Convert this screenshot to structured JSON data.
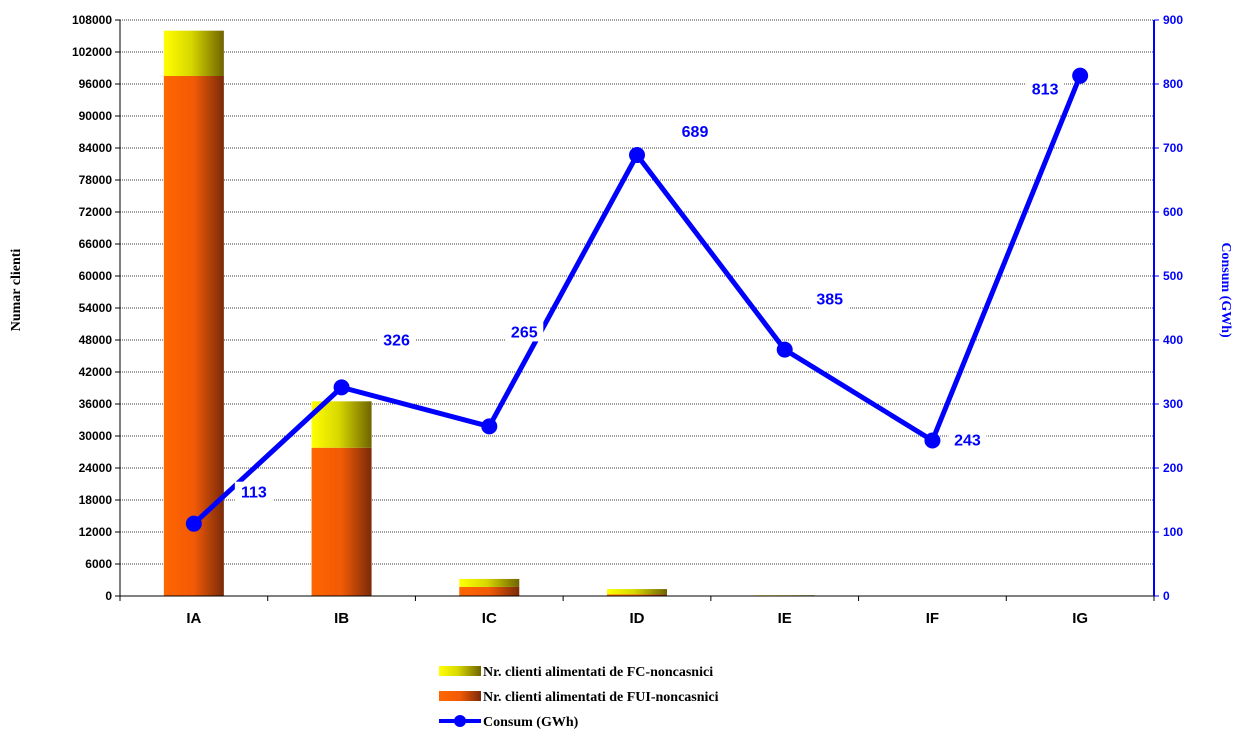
{
  "chart_data": {
    "type": "bar",
    "categories": [
      "IA",
      "IB",
      "IC",
      "ID",
      "IE",
      "IF",
      "IG"
    ],
    "series": [
      {
        "name": "Nr. clienti alimentati de FUI-noncasnici",
        "type": "bar",
        "stack": "clienti",
        "axis": "left",
        "values": [
          97500,
          27800,
          1700,
          300,
          40,
          30,
          20
        ],
        "color": "#ff6600"
      },
      {
        "name": "Nr. clienti alimentati de FC-noncasnici",
        "type": "bar",
        "stack": "clienti",
        "axis": "left",
        "values": [
          8500,
          8700,
          1500,
          1000,
          100,
          60,
          40
        ],
        "color": "#ffff00"
      },
      {
        "name": "Consum (GWh)",
        "type": "line",
        "axis": "right",
        "values": [
          113,
          326,
          265,
          689,
          385,
          243,
          813
        ],
        "labels": [
          "113",
          "326",
          "265",
          "689",
          "385",
          "243",
          "813"
        ],
        "color": "#0000ff"
      }
    ],
    "ylabel": "Numar clienti",
    "y2label": "Consum (GWh)",
    "ylim": [
      0,
      108000
    ],
    "y2lim": [
      0,
      900
    ],
    "yticks": [
      "0",
      "6000",
      "12000",
      "18000",
      "24000",
      "30000",
      "36000",
      "42000",
      "48000",
      "54000",
      "60000",
      "66000",
      "72000",
      "78000",
      "84000",
      "90000",
      "96000",
      "102000",
      "108000"
    ],
    "y2ticks": [
      "0",
      "100",
      "200",
      "300",
      "400",
      "500",
      "600",
      "700",
      "800",
      "900"
    ],
    "grid": true,
    "legend_position": "bottom",
    "legend": [
      {
        "label": "Nr. clienti alimentati de FC-noncasnici",
        "kind": "bar-fc"
      },
      {
        "label": "Nr. clienti alimentati de FUI-noncasnici",
        "kind": "bar-fui"
      },
      {
        "label": "Consum (GWh)",
        "kind": "line"
      }
    ]
  }
}
